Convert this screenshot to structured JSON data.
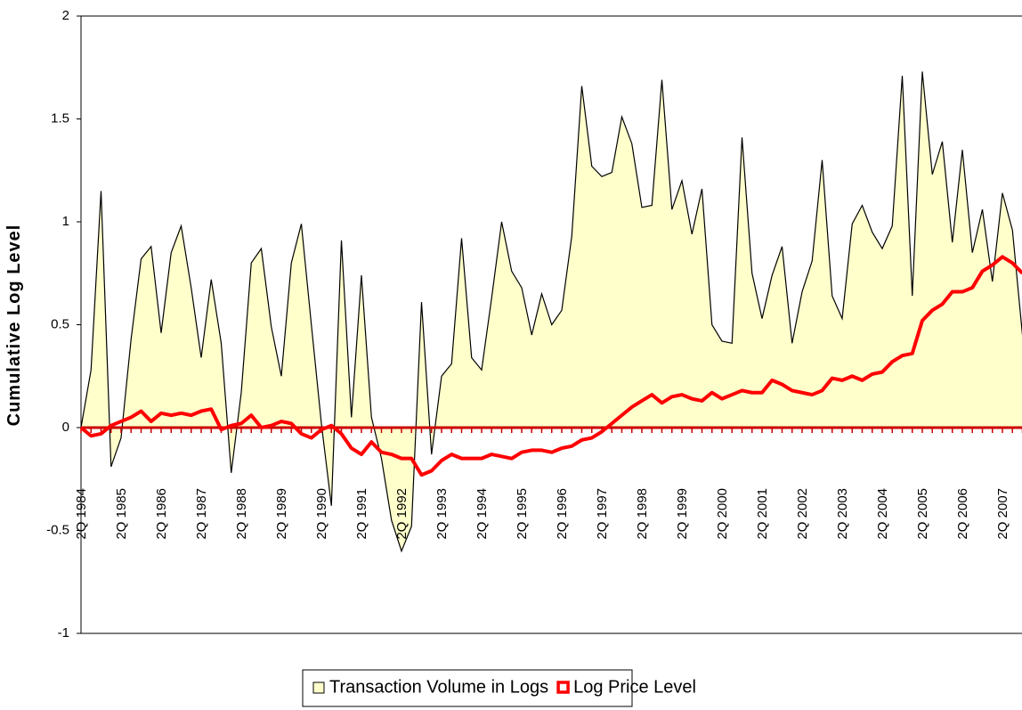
{
  "chart_data": {
    "type": "area-line",
    "y_label": "Cumulative Log Level",
    "categories": [
      "2Q 1984",
      null,
      null,
      null,
      "2Q 1985",
      null,
      null,
      null,
      "2Q 1986",
      null,
      null,
      null,
      "2Q 1987",
      null,
      null,
      null,
      "2Q 1988",
      null,
      null,
      null,
      "2Q 1989",
      null,
      null,
      null,
      "2Q 1990",
      null,
      null,
      null,
      "2Q 1991",
      null,
      null,
      null,
      "2Q 1992",
      null,
      null,
      null,
      "2Q 1993",
      null,
      null,
      null,
      "2Q 1994",
      null,
      null,
      null,
      "2Q 1995",
      null,
      null,
      null,
      "2Q 1996",
      null,
      null,
      null,
      "2Q 1997",
      null,
      null,
      null,
      "2Q 1998",
      null,
      null,
      null,
      "2Q 1999",
      null,
      null,
      null,
      "2Q 2000",
      null,
      null,
      null,
      "2Q 2001",
      null,
      null,
      null,
      "2Q 2002",
      null,
      null,
      null,
      "2Q 2003",
      null,
      null,
      null,
      "2Q 2004",
      null,
      null,
      null,
      "2Q 2005",
      null,
      null,
      null,
      "2Q 2006",
      null,
      null,
      null,
      "2Q 2007",
      null,
      null
    ],
    "series": [
      {
        "name": "Transaction Volume in Logs",
        "kind": "area",
        "color": "#ffffcc",
        "edge_color": "#000000",
        "values": [
          0,
          0.28,
          1.15,
          -0.19,
          -0.05,
          0.43,
          0.82,
          0.88,
          0.46,
          0.85,
          0.98,
          0.68,
          0.34,
          0.72,
          0.41,
          -0.22,
          0.17,
          0.8,
          0.87,
          0.49,
          0.25,
          0.8,
          0.99,
          0.5,
          0.02,
          -0.38,
          0.91,
          0.05,
          0.74,
          0.05,
          -0.15,
          -0.45,
          -0.6,
          -0.48,
          0.61,
          -0.13,
          0.25,
          0.31,
          0.92,
          0.34,
          0.28,
          0.63,
          1.0,
          0.76,
          0.68,
          0.45,
          0.65,
          0.5,
          0.57,
          0.93,
          1.66,
          1.27,
          1.22,
          1.24,
          1.51,
          1.38,
          1.07,
          1.08,
          1.69,
          1.06,
          1.2,
          0.94,
          1.16,
          0.5,
          0.42,
          0.41,
          1.41,
          0.75,
          0.53,
          0.74,
          0.88,
          0.41,
          0.66,
          0.81,
          1.3,
          0.64,
          0.53,
          0.99,
          1.08,
          0.95,
          0.87,
          0.98,
          1.71,
          0.64,
          1.73,
          1.23,
          1.39,
          0.9,
          1.35,
          0.85,
          1.06,
          0.71,
          1.14,
          0.96,
          0.45
        ]
      },
      {
        "name": "Log Price Level",
        "kind": "line",
        "color": "#ff0000",
        "values": [
          0.0,
          -0.04,
          -0.03,
          0.01,
          0.03,
          0.05,
          0.08,
          0.03,
          0.07,
          0.06,
          0.07,
          0.06,
          0.08,
          0.09,
          -0.01,
          0.01,
          0.02,
          0.06,
          0.0,
          0.01,
          0.03,
          0.02,
          -0.03,
          -0.05,
          -0.01,
          0.01,
          -0.03,
          -0.1,
          -0.13,
          -0.07,
          -0.12,
          -0.13,
          -0.15,
          -0.15,
          -0.23,
          -0.21,
          -0.16,
          -0.13,
          -0.15,
          -0.15,
          -0.15,
          -0.13,
          -0.14,
          -0.15,
          -0.12,
          -0.11,
          -0.11,
          -0.12,
          -0.1,
          -0.09,
          -0.06,
          -0.05,
          -0.02,
          0.02,
          0.06,
          0.1,
          0.13,
          0.16,
          0.12,
          0.15,
          0.16,
          0.14,
          0.13,
          0.17,
          0.14,
          0.16,
          0.18,
          0.17,
          0.17,
          0.23,
          0.21,
          0.18,
          0.17,
          0.16,
          0.18,
          0.24,
          0.23,
          0.25,
          0.23,
          0.26,
          0.27,
          0.32,
          0.35,
          0.36,
          0.52,
          0.57,
          0.6,
          0.66,
          0.66,
          0.68,
          0.76,
          0.79,
          0.83,
          0.8,
          0.75
        ]
      }
    ],
    "ylim": [
      -1,
      2
    ],
    "yticks": [
      -1,
      -0.5,
      0,
      0.5,
      1,
      1.5,
      2
    ],
    "legend": "bottom"
  }
}
